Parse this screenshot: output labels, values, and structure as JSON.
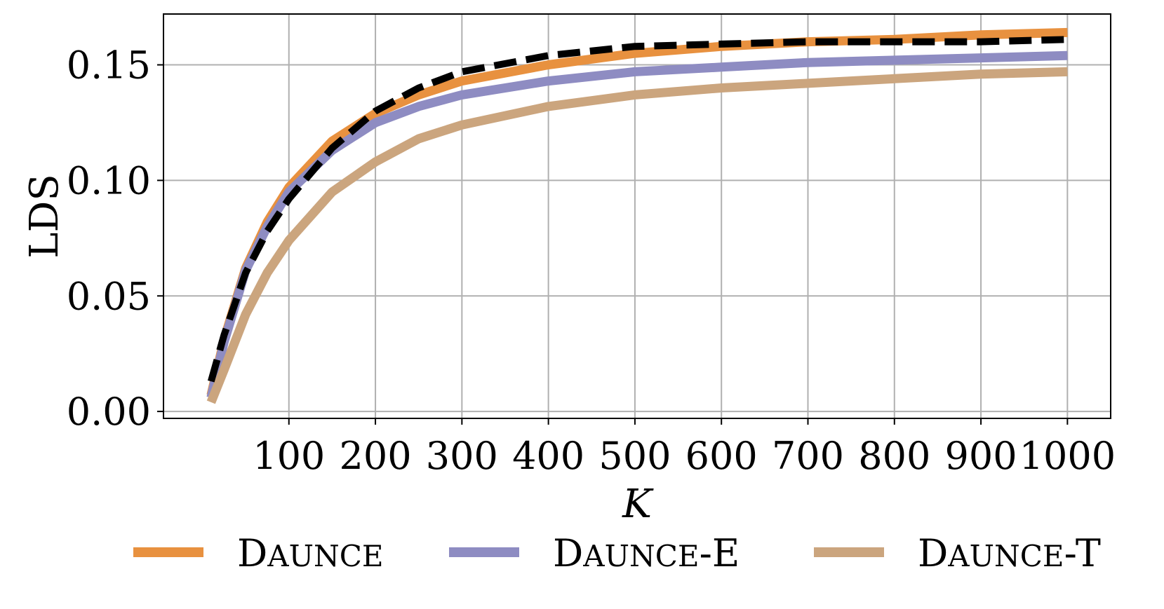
{
  "chart_data": {
    "type": "line",
    "title": "",
    "xlabel": "K",
    "ylabel": "LDS",
    "xlim": [
      -45,
      1050
    ],
    "ylim": [
      -0.003,
      0.172
    ],
    "x_ticks": [
      100,
      200,
      300,
      400,
      500,
      600,
      700,
      800,
      900,
      1000
    ],
    "x_tick_labels": [
      "100",
      "200",
      "300",
      "400",
      "500",
      "600",
      "700",
      "800",
      "900",
      "1000"
    ],
    "y_ticks": [
      0.0,
      0.05,
      0.1,
      0.15
    ],
    "y_tick_labels": [
      "0.00",
      "0.05",
      "0.10",
      "0.15"
    ],
    "grid": true,
    "legend_position": "bottom",
    "x": [
      10,
      25,
      50,
      75,
      100,
      150,
      200,
      250,
      300,
      400,
      500,
      600,
      700,
      800,
      900,
      1000
    ],
    "series": [
      {
        "name": "Daunce",
        "color": "#E8913F",
        "style": "solid",
        "values": [
          0.007,
          0.031,
          0.062,
          0.082,
          0.097,
          0.117,
          0.129,
          0.137,
          0.143,
          0.15,
          0.155,
          0.158,
          0.16,
          0.161,
          0.163,
          0.164
        ]
      },
      {
        "name": "Daunce-E",
        "color": "#8E8CC2",
        "style": "solid",
        "values": [
          0.006,
          0.03,
          0.061,
          0.08,
          0.095,
          0.113,
          0.125,
          0.132,
          0.137,
          0.143,
          0.147,
          0.149,
          0.151,
          0.152,
          0.153,
          0.154
        ]
      },
      {
        "name": "Daunce-T",
        "color": "#CBA57E",
        "style": "solid",
        "values": [
          0.004,
          0.018,
          0.042,
          0.06,
          0.074,
          0.095,
          0.108,
          0.118,
          0.124,
          0.132,
          0.137,
          0.14,
          0.142,
          0.144,
          0.146,
          0.147
        ]
      },
      {
        "name": "",
        "color": "#000000",
        "style": "dashed",
        "values": [
          0.013,
          0.033,
          0.06,
          0.078,
          0.092,
          0.114,
          0.13,
          0.14,
          0.147,
          0.154,
          0.158,
          0.159,
          0.16,
          0.16,
          0.16,
          0.161
        ]
      }
    ]
  },
  "legend": {
    "items": [
      {
        "first": "D",
        "rest": "AUNCE",
        "suffix": "",
        "color": "#E8913F"
      },
      {
        "first": "D",
        "rest": "AUNCE",
        "suffix": "-E",
        "color": "#8E8CC2"
      },
      {
        "first": "D",
        "rest": "AUNCE",
        "suffix": "-T",
        "color": "#CBA57E"
      }
    ]
  }
}
